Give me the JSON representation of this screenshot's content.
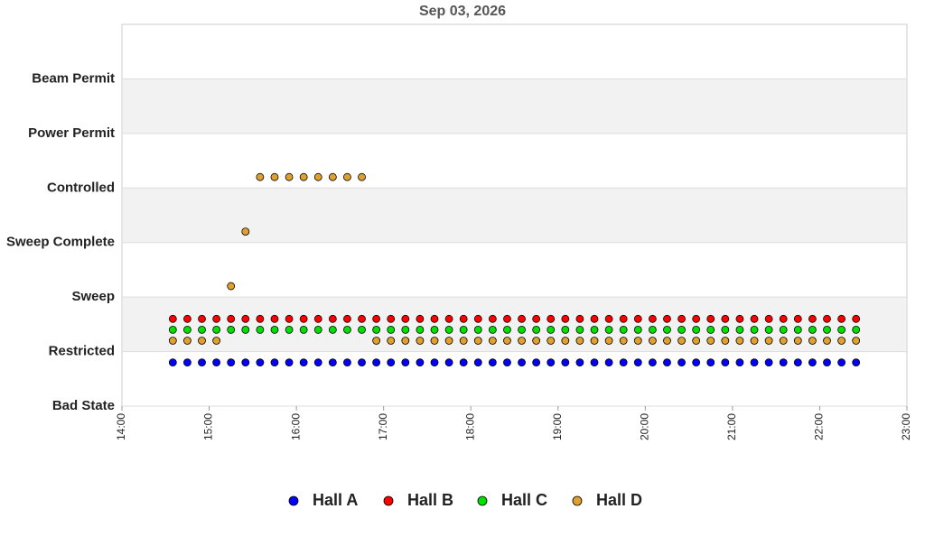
{
  "chart_data": {
    "type": "scatter",
    "title": "Sep 03, 2026",
    "x": [
      "14:35",
      "14:45",
      "14:55",
      "15:05",
      "15:15",
      "15:25",
      "15:35",
      "15:45",
      "15:55",
      "16:05",
      "16:15",
      "16:25",
      "16:35",
      "16:45",
      "16:55",
      "17:05",
      "17:15",
      "17:25",
      "17:35",
      "17:45",
      "17:55",
      "18:05",
      "18:15",
      "18:25",
      "18:35",
      "18:45",
      "18:55",
      "19:05",
      "19:15",
      "19:25",
      "19:35",
      "19:45",
      "19:55",
      "20:05",
      "20:15",
      "20:25",
      "20:35",
      "20:45",
      "20:55",
      "21:05",
      "21:15",
      "21:25",
      "21:35",
      "21:45",
      "21:55",
      "22:05",
      "22:15",
      "22:25"
    ],
    "xlim": [
      "14:00",
      "23:00"
    ],
    "xticks": [
      "14:00",
      "15:00",
      "16:00",
      "17:00",
      "18:00",
      "19:00",
      "20:00",
      "21:00",
      "22:00",
      "23:00"
    ],
    "ylim": [
      0,
      7
    ],
    "yticks": [
      {
        "value": 0,
        "label": "Bad State"
      },
      {
        "value": 1,
        "label": "Restricted"
      },
      {
        "value": 2,
        "label": "Sweep"
      },
      {
        "value": 3,
        "label": "Sweep Complete"
      },
      {
        "value": 4,
        "label": "Controlled"
      },
      {
        "value": 5,
        "label": "Power Permit"
      },
      {
        "value": 6,
        "label": "Beam Permit"
      }
    ],
    "grid": true,
    "legend": "bottom",
    "series": [
      {
        "name": "Hall A",
        "color": "#0000ff",
        "values": [
          0.8,
          0.8,
          0.8,
          0.8,
          0.8,
          0.8,
          0.8,
          0.8,
          0.8,
          0.8,
          0.8,
          0.8,
          0.8,
          0.8,
          0.8,
          0.8,
          0.8,
          0.8,
          0.8,
          0.8,
          0.8,
          0.8,
          0.8,
          0.8,
          0.8,
          0.8,
          0.8,
          0.8,
          0.8,
          0.8,
          0.8,
          0.8,
          0.8,
          0.8,
          0.8,
          0.8,
          0.8,
          0.8,
          0.8,
          0.8,
          0.8,
          0.8,
          0.8,
          0.8,
          0.8,
          0.8,
          0.8,
          0.8
        ]
      },
      {
        "name": "Hall B",
        "color": "#ff0000",
        "values": [
          1.6,
          1.6,
          1.6,
          1.6,
          1.6,
          1.6,
          1.6,
          1.6,
          1.6,
          1.6,
          1.6,
          1.6,
          1.6,
          1.6,
          1.6,
          1.6,
          1.6,
          1.6,
          1.6,
          1.6,
          1.6,
          1.6,
          1.6,
          1.6,
          1.6,
          1.6,
          1.6,
          1.6,
          1.6,
          1.6,
          1.6,
          1.6,
          1.6,
          1.6,
          1.6,
          1.6,
          1.6,
          1.6,
          1.6,
          1.6,
          1.6,
          1.6,
          1.6,
          1.6,
          1.6,
          1.6,
          1.6,
          1.6
        ]
      },
      {
        "name": "Hall C",
        "color": "#00e000",
        "values": [
          1.4,
          1.4,
          1.4,
          1.4,
          1.4,
          1.4,
          1.4,
          1.4,
          1.4,
          1.4,
          1.4,
          1.4,
          1.4,
          1.4,
          1.4,
          1.4,
          1.4,
          1.4,
          1.4,
          1.4,
          1.4,
          1.4,
          1.4,
          1.4,
          1.4,
          1.4,
          1.4,
          1.4,
          1.4,
          1.4,
          1.4,
          1.4,
          1.4,
          1.4,
          1.4,
          1.4,
          1.4,
          1.4,
          1.4,
          1.4,
          1.4,
          1.4,
          1.4,
          1.4,
          1.4,
          1.4,
          1.4,
          1.4
        ]
      },
      {
        "name": "Hall D",
        "color": "#e0a030",
        "values": [
          1.2,
          1.2,
          1.2,
          1.2,
          2.2,
          3.2,
          4.2,
          4.2,
          4.2,
          4.2,
          4.2,
          4.2,
          4.2,
          4.2,
          1.2,
          1.2,
          1.2,
          1.2,
          1.2,
          1.2,
          1.2,
          1.2,
          1.2,
          1.2,
          1.2,
          1.2,
          1.2,
          1.2,
          1.2,
          1.2,
          1.2,
          1.2,
          1.2,
          1.2,
          1.2,
          1.2,
          1.2,
          1.2,
          1.2,
          1.2,
          1.2,
          1.2,
          1.2,
          1.2,
          1.2,
          1.2,
          1.2,
          1.2
        ]
      }
    ]
  }
}
